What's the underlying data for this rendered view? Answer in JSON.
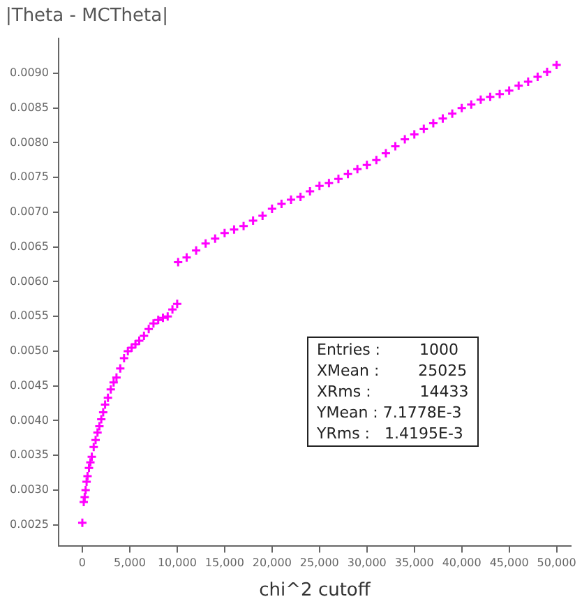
{
  "chart_data": {
    "type": "scatter",
    "title": "|Theta - MCTheta|",
    "xlabel": "chi^2 cutoff",
    "x": [
      0,
      150,
      250,
      350,
      450,
      550,
      700,
      850,
      1000,
      1200,
      1400,
      1600,
      1800,
      2000,
      2200,
      2400,
      2700,
      3000,
      3300,
      3600,
      4000,
      4400,
      4800,
      5200,
      5600,
      6000,
      6500,
      7000,
      7500,
      8000,
      8500,
      9000,
      9500,
      10000,
      10100,
      11000,
      12000,
      13000,
      14000,
      15000,
      16000,
      17000,
      18000,
      19000,
      20000,
      21000,
      22000,
      23000,
      24000,
      25000,
      26000,
      27000,
      28000,
      29000,
      30000,
      31000,
      32000,
      33000,
      34000,
      35000,
      36000,
      37000,
      38000,
      39000,
      40000,
      41000,
      42000,
      43000,
      44000,
      45000,
      46000,
      47000,
      48000,
      49000,
      50000
    ],
    "series": [
      {
        "color": "#ff00ff",
        "values": [
          0.00253,
          0.00283,
          0.0029,
          0.003,
          0.00312,
          0.0032,
          0.00332,
          0.0034,
          0.00348,
          0.00362,
          0.00372,
          0.00383,
          0.00392,
          0.00402,
          0.00412,
          0.00423,
          0.00433,
          0.00445,
          0.00455,
          0.00462,
          0.00475,
          0.0049,
          0.005,
          0.00505,
          0.0051,
          0.00515,
          0.00522,
          0.00532,
          0.0054,
          0.00545,
          0.00548,
          0.0055,
          0.0056,
          0.00568,
          0.00628,
          0.00635,
          0.00645,
          0.00655,
          0.00662,
          0.0067,
          0.00675,
          0.0068,
          0.00688,
          0.00695,
          0.00705,
          0.00712,
          0.00718,
          0.00722,
          0.0073,
          0.00738,
          0.00742,
          0.00748,
          0.00755,
          0.00762,
          0.00768,
          0.00775,
          0.00785,
          0.00795,
          0.00805,
          0.00812,
          0.0082,
          0.00828,
          0.00835,
          0.00842,
          0.0085,
          0.00855,
          0.00862,
          0.00866,
          0.0087,
          0.00875,
          0.00882,
          0.00888,
          0.00895,
          0.00902,
          0.00912
        ]
      }
    ],
    "xlim": [
      -2500,
      51500
    ],
    "xticks": [
      0,
      {
        "value": 5000,
        "label": "5,000"
      },
      {
        "value": 10000,
        "label": "10,000"
      },
      {
        "value": 15000,
        "label": "15,000"
      },
      {
        "value": 20000,
        "label": "20,000"
      },
      {
        "value": 25000,
        "label": "25,000"
      },
      {
        "value": 30000,
        "label": "30,000"
      },
      {
        "value": 35000,
        "label": "35,000"
      },
      {
        "value": 40000,
        "label": "40,000"
      },
      {
        "value": 45000,
        "label": "45,000"
      },
      {
        "value": 50000,
        "label": "50,000"
      }
    ],
    "ylim": [
      0.0022,
      0.0095
    ],
    "yticks": [
      0.0025,
      {
        "value": 0.003,
        "label": "0.0030"
      },
      0.0035,
      {
        "value": 0.004,
        "label": "0.0040"
      },
      0.0045,
      {
        "value": 0.005,
        "label": "0.0050"
      },
      0.0055,
      {
        "value": 0.006,
        "label": "0.0060"
      },
      0.0065,
      {
        "value": 0.007,
        "label": "0.0070"
      },
      0.0075,
      {
        "value": 0.008,
        "label": "0.0080"
      },
      0.0085,
      {
        "value": 0.009,
        "label": "0.0090"
      }
    ],
    "marker": "cross",
    "grid": false,
    "legend": false,
    "annotations": [
      "Entries :        1000",
      "XMean :        25025",
      "XRms :          14433",
      "YMean : 7.1778E-3",
      "YRms :   1.4195E-3"
    ]
  }
}
